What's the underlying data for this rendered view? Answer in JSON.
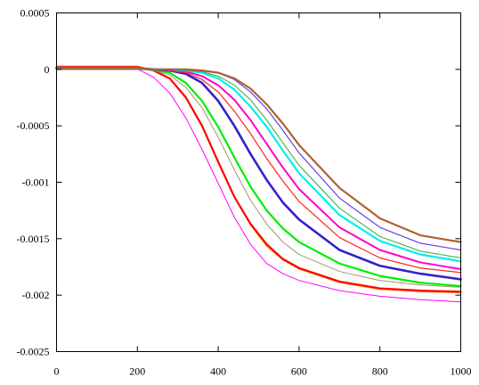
{
  "chart_data": {
    "type": "line",
    "title": "",
    "xlabel": "",
    "ylabel": "",
    "xlim": [
      0,
      1000
    ],
    "ylim": [
      -0.0025,
      0.0005
    ],
    "x_ticks": [
      0,
      200,
      400,
      600,
      800,
      1000
    ],
    "y_ticks": [
      0.0005,
      0,
      -0.0005,
      -0.001,
      -0.0015,
      -0.002,
      -0.0025
    ],
    "x_tick_labels": [
      "0",
      "200",
      "400",
      "600",
      "800",
      "1000"
    ],
    "y_tick_labels": [
      "0.0005",
      "0",
      "-0.0005",
      "-0.001",
      "-0.0015",
      "-0.002",
      "-0.0025"
    ],
    "grid": false,
    "legend": "none",
    "series": [
      {
        "color": "#ff00ff",
        "width": 1.0,
        "x": [
          0,
          200,
          240,
          280,
          320,
          360,
          400,
          440,
          480,
          520,
          560,
          600,
          700,
          800,
          900,
          1000
        ],
        "y": [
          3e-06,
          3e-06,
          -7e-05,
          -0.00021,
          -0.00043,
          -0.00071,
          -0.00101,
          -0.00131,
          -0.00155,
          -0.00172,
          -0.00181,
          -0.00187,
          -0.00196,
          -0.00201,
          -0.00204,
          -0.00206
        ]
      },
      {
        "color": "#ff9900",
        "width": 1.0,
        "x": [
          0,
          200,
          240,
          280,
          320,
          360,
          400,
          440,
          480,
          520,
          560,
          600,
          700,
          800,
          900,
          1000
        ],
        "y": [
          3e-05,
          3e-05,
          -1e-05,
          -8e-05,
          -0.00024,
          -0.00049,
          -0.00081,
          -0.00113,
          -0.00138,
          -0.00157,
          -0.00169,
          -0.00177,
          -0.00189,
          -0.00195,
          -0.00197,
          -0.00198
        ]
      },
      {
        "color": "#ff0000",
        "width": 2.2,
        "x": [
          0,
          200,
          240,
          280,
          320,
          360,
          400,
          440,
          480,
          520,
          560,
          600,
          700,
          800,
          900,
          1000
        ],
        "y": [
          2e-05,
          2e-05,
          -1e-05,
          -8e-05,
          -0.00025,
          -0.0005,
          -0.00082,
          -0.00113,
          -0.00137,
          -0.00155,
          -0.00168,
          -0.00176,
          -0.00188,
          -0.00194,
          -0.00196,
          -0.00197
        ]
      },
      {
        "color": "#999966",
        "width": 1.0,
        "x": [
          0,
          200,
          240,
          280,
          320,
          360,
          400,
          440,
          480,
          520,
          560,
          600,
          700,
          800,
          900,
          1000
        ],
        "y": [
          2e-05,
          2e-05,
          -1e-05,
          -5e-05,
          -0.00016,
          -0.00034,
          -0.0006,
          -0.00089,
          -0.00116,
          -0.00137,
          -0.00153,
          -0.00164,
          -0.00179,
          -0.00187,
          -0.00191,
          -0.00193
        ]
      },
      {
        "color": "#00ee00",
        "width": 2.2,
        "x": [
          0,
          200,
          240,
          280,
          320,
          360,
          400,
          440,
          480,
          520,
          560,
          600,
          700,
          800,
          900,
          1000
        ],
        "y": [
          1e-05,
          1e-05,
          -5e-06,
          -3e-05,
          -0.00012,
          -0.00028,
          -0.00051,
          -0.00078,
          -0.00104,
          -0.00125,
          -0.00141,
          -0.00153,
          -0.00172,
          -0.00183,
          -0.00189,
          -0.00192
        ]
      },
      {
        "color": "#3322cc",
        "width": 2.6,
        "x": [
          0,
          200,
          240,
          280,
          320,
          360,
          400,
          440,
          480,
          520,
          560,
          600,
          700,
          800,
          900,
          1000
        ],
        "y": [
          1e-05,
          1e-05,
          0.0,
          -1e-05,
          -4e-05,
          -0.00012,
          -0.00028,
          -0.0005,
          -0.00075,
          -0.00098,
          -0.00118,
          -0.00133,
          -0.0016,
          -0.00174,
          -0.00181,
          -0.00186
        ]
      },
      {
        "color": "#ff2222",
        "width": 1.2,
        "x": [
          0,
          200,
          240,
          280,
          320,
          360,
          400,
          440,
          480,
          520,
          560,
          600,
          700,
          800,
          900,
          1000
        ],
        "y": [
          2e-05,
          2e-05,
          0.0,
          -1e-05,
          -3e-05,
          -9e-05,
          -0.0002,
          -0.00037,
          -0.00057,
          -0.00079,
          -0.00099,
          -0.00117,
          -0.00149,
          -0.00167,
          -0.00176,
          -0.0018
        ]
      },
      {
        "color": "#ff00cc",
        "width": 2.0,
        "x": [
          0,
          200,
          240,
          280,
          320,
          360,
          400,
          440,
          480,
          520,
          560,
          600,
          700,
          800,
          900,
          1000
        ],
        "y": [
          5e-06,
          5e-06,
          0.0,
          -5e-06,
          -2e-05,
          -6e-05,
          -0.00014,
          -0.00027,
          -0.00045,
          -0.00066,
          -0.00087,
          -0.00106,
          -0.0014,
          -0.0016,
          -0.00171,
          -0.00177
        ]
      },
      {
        "color": "#00eeee",
        "width": 2.2,
        "x": [
          0,
          200,
          240,
          280,
          320,
          360,
          400,
          440,
          480,
          520,
          560,
          600,
          700,
          800,
          900,
          1000
        ],
        "y": [
          5e-06,
          5e-06,
          0.0,
          0.0,
          -1e-05,
          -3e-05,
          -8e-05,
          -0.00018,
          -0.00033,
          -0.00051,
          -0.00072,
          -0.00092,
          -0.00129,
          -0.00152,
          -0.00164,
          -0.0017
        ]
      },
      {
        "color": "#33aa33",
        "width": 1.0,
        "x": [
          0,
          200,
          240,
          280,
          320,
          360,
          400,
          440,
          480,
          520,
          560,
          600,
          700,
          800,
          900,
          1000
        ],
        "y": [
          5e-06,
          5e-06,
          0.0,
          0.0,
          -1e-05,
          -2e-05,
          -6e-05,
          -0.00014,
          -0.00027,
          -0.00045,
          -0.00065,
          -0.00085,
          -0.00123,
          -0.00148,
          -0.00161,
          -0.00167
        ]
      },
      {
        "color": "#6644dd",
        "width": 1.2,
        "x": [
          0,
          200,
          240,
          280,
          320,
          360,
          400,
          440,
          480,
          520,
          560,
          600,
          700,
          800,
          900,
          1000
        ],
        "y": [
          3e-06,
          3e-06,
          0.0,
          0.0,
          0.0,
          -1e-05,
          -3e-05,
          -9e-05,
          -0.0002,
          -0.00035,
          -0.00054,
          -0.00074,
          -0.00114,
          -0.0014,
          -0.00154,
          -0.0016
        ]
      },
      {
        "color": "#b06030",
        "width": 2.2,
        "x": [
          0,
          200,
          240,
          280,
          320,
          360,
          400,
          440,
          480,
          520,
          560,
          600,
          700,
          800,
          900,
          1000
        ],
        "y": [
          3e-06,
          3e-06,
          0.0,
          0.0,
          0.0,
          -1e-05,
          -3e-05,
          -8e-05,
          -0.00017,
          -0.00031,
          -0.00048,
          -0.00067,
          -0.00105,
          -0.00132,
          -0.00147,
          -0.00153
        ]
      }
    ]
  }
}
